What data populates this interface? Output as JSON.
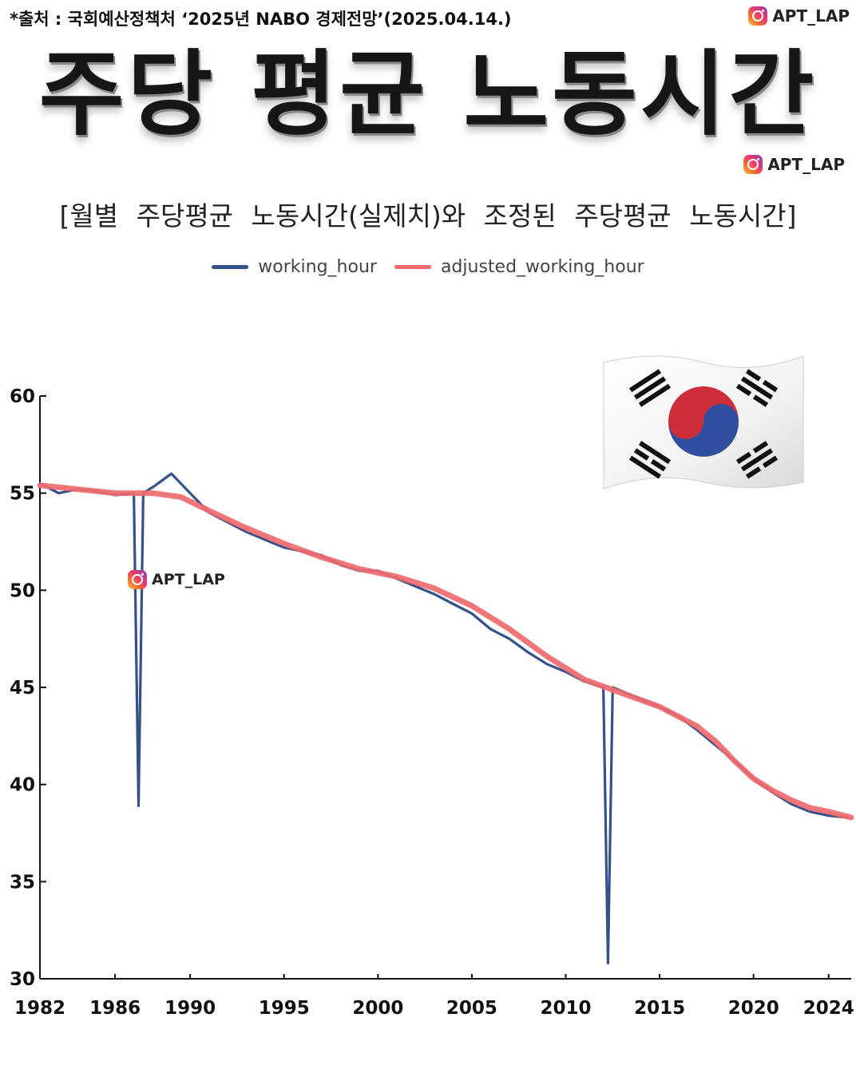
{
  "header": {
    "source": "*출처 : 국회예산정책처 ‘2025년 NABO 경제전망’(2025.04.14.)",
    "watermark": "APT_LAP",
    "title": "주당 평균 노동시간",
    "subtitle": "[월별 주당평균 노동시간(실제치)와 조정된 주당평균 노동시간]"
  },
  "icons": {
    "watermark_icon": "instagram-icon",
    "flag_icon": "south-korea-flag-icon"
  },
  "colors": {
    "working_hour": "#34518a",
    "adjusted_working_hour": "#ef6a6e"
  },
  "chart_data": {
    "type": "line",
    "title": "",
    "xlabel": "",
    "ylabel": "",
    "ylim": [
      30,
      60
    ],
    "xlim": [
      1982,
      2025.2
    ],
    "yticks": [
      60,
      55,
      50,
      45,
      40,
      35,
      30
    ],
    "xticks": [
      1982,
      1986,
      1990,
      1995,
      2000,
      2005,
      2010,
      2015,
      2020,
      2024
    ],
    "legend_position": "top-center",
    "grid": false,
    "series": [
      {
        "name": "working_hour",
        "x": [
          1982,
          1983,
          1984,
          1985,
          1986,
          1987,
          1987.25,
          1987.5,
          1988,
          1989,
          1990,
          1991,
          1992,
          1993,
          1994,
          1995,
          1996,
          1997,
          1998,
          1999,
          2000,
          2001,
          2002,
          2003,
          2004,
          2005,
          2006,
          2007,
          2008,
          2009,
          2010,
          2011,
          2012,
          2012.25,
          2012.5,
          2013,
          2014,
          2015,
          2016,
          2017,
          2018,
          2019,
          2020,
          2021,
          2022,
          2023,
          2024,
          2025
        ],
        "values": [
          55.5,
          55.0,
          55.2,
          55.1,
          54.9,
          55.0,
          38.9,
          55.0,
          55.3,
          56.0,
          55.0,
          54.0,
          53.5,
          53.0,
          52.6,
          52.2,
          52.0,
          51.8,
          51.3,
          51.0,
          51.0,
          50.6,
          50.2,
          49.8,
          49.3,
          48.8,
          48.0,
          47.5,
          46.8,
          46.2,
          45.8,
          45.3,
          45.0,
          30.8,
          45.0,
          44.8,
          44.4,
          44.0,
          43.5,
          42.8,
          42.0,
          41.2,
          40.3,
          39.6,
          39.0,
          38.6,
          38.4,
          38.3
        ]
      },
      {
        "name": "adjusted_working_hour",
        "x": [
          1982,
          1984,
          1986,
          1988,
          1989.5,
          1991,
          1993,
          1995,
          1997,
          1999,
          2001,
          2003,
          2005,
          2007,
          2009,
          2011,
          2013,
          2015,
          2016,
          2017,
          2018,
          2019,
          2020,
          2021,
          2022,
          2023,
          2024,
          2025.2
        ],
        "values": [
          55.4,
          55.2,
          55.0,
          55.0,
          54.8,
          54.1,
          53.2,
          52.4,
          51.7,
          51.1,
          50.7,
          50.1,
          49.2,
          48.0,
          46.6,
          45.4,
          44.7,
          44.0,
          43.5,
          43.0,
          42.2,
          41.2,
          40.3,
          39.7,
          39.2,
          38.8,
          38.6,
          38.3
        ]
      }
    ]
  }
}
